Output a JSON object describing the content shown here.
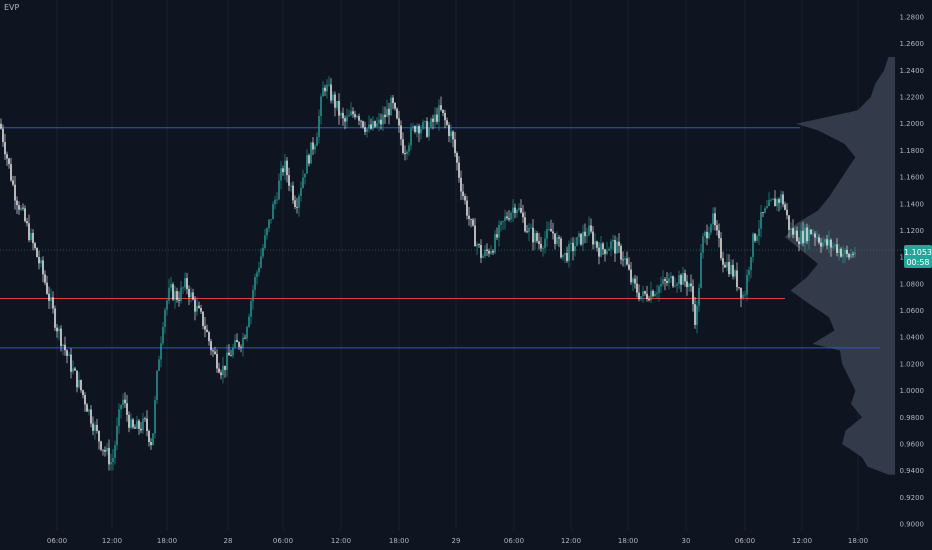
{
  "indicator": {
    "label": "EVP"
  },
  "price_label": {
    "value": "1.1053",
    "countdown": "00:58"
  },
  "colors": {
    "background": "#0f1421",
    "up": "#26a69a",
    "down": "#ffffff",
    "line_blue": "#2f52e0",
    "line_red": "#e03a48",
    "line_green": "#2f7a5a",
    "profile": "#3a4150",
    "axis_text": "#b2b5be",
    "grid": "#1a2030",
    "price_badge": "#26a69a"
  },
  "chart_data": {
    "type": "candlestick",
    "yticks": [
      "1.2800",
      "1.2600",
      "1.2400",
      "1.2200",
      "1.2000",
      "1.1800",
      "1.1600",
      "1.1400",
      "1.1200",
      "1.1000",
      "1.0800",
      "1.0600",
      "1.0400",
      "1.0200",
      "1.0000",
      "0.9800",
      "0.9600",
      "0.9400",
      "0.9200",
      "0.9000"
    ],
    "ylim": [
      0.9,
      1.28
    ],
    "xticks": [
      "06:00",
      "12:00",
      "18:00",
      "28",
      "06:00",
      "12:00",
      "18:00",
      "29",
      "06:00",
      "12:00",
      "18:00",
      "30",
      "06:00",
      "12:00",
      "18:00"
    ],
    "levels": {
      "value_area_high": 1.197,
      "point_of_control": 1.069,
      "value_area_low": 1.032,
      "last_price": 1.1053
    },
    "price_path": [
      [
        0,
        1.2
      ],
      [
        14,
        1.15
      ],
      [
        28,
        1.12
      ],
      [
        42,
        1.09
      ],
      [
        56,
        1.05
      ],
      [
        70,
        1.02
      ],
      [
        84,
        0.995
      ],
      [
        98,
        0.965
      ],
      [
        112,
        0.945
      ],
      [
        122,
        0.995
      ],
      [
        132,
        0.97
      ],
      [
        145,
        0.975
      ],
      [
        152,
        0.96
      ],
      [
        158,
        1.02
      ],
      [
        164,
        1.06
      ],
      [
        170,
        1.075
      ],
      [
        178,
        1.07
      ],
      [
        186,
        1.08
      ],
      [
        194,
        1.065
      ],
      [
        204,
        1.05
      ],
      [
        212,
        1.03
      ],
      [
        222,
        1.015
      ],
      [
        232,
        1.03
      ],
      [
        244,
        1.04
      ],
      [
        254,
        1.08
      ],
      [
        264,
        1.11
      ],
      [
        274,
        1.14
      ],
      [
        284,
        1.17
      ],
      [
        296,
        1.14
      ],
      [
        306,
        1.17
      ],
      [
        316,
        1.19
      ],
      [
        324,
        1.23
      ],
      [
        332,
        1.22
      ],
      [
        344,
        1.2
      ],
      [
        356,
        1.21
      ],
      [
        368,
        1.195
      ],
      [
        380,
        1.2
      ],
      [
        392,
        1.215
      ],
      [
        404,
        1.18
      ],
      [
        416,
        1.2
      ],
      [
        428,
        1.195
      ],
      [
        440,
        1.21
      ],
      [
        452,
        1.19
      ],
      [
        462,
        1.15
      ],
      [
        472,
        1.12
      ],
      [
        482,
        1.1
      ],
      [
        494,
        1.11
      ],
      [
        506,
        1.13
      ],
      [
        516,
        1.14
      ],
      [
        528,
        1.12
      ],
      [
        540,
        1.11
      ],
      [
        552,
        1.12
      ],
      [
        564,
        1.1
      ],
      [
        576,
        1.11
      ],
      [
        588,
        1.12
      ],
      [
        600,
        1.105
      ],
      [
        612,
        1.11
      ],
      [
        624,
        1.1
      ],
      [
        632,
        1.08
      ],
      [
        642,
        1.07
      ],
      [
        652,
        1.075
      ],
      [
        664,
        1.08
      ],
      [
        678,
        1.085
      ],
      [
        690,
        1.08
      ],
      [
        696,
        1.05
      ],
      [
        702,
        1.11
      ],
      [
        712,
        1.13
      ],
      [
        722,
        1.1
      ],
      [
        732,
        1.09
      ],
      [
        744,
        1.07
      ],
      [
        752,
        1.11
      ],
      [
        762,
        1.13
      ],
      [
        772,
        1.14
      ],
      [
        782,
        1.145
      ],
      [
        790,
        1.12
      ],
      [
        800,
        1.115
      ],
      [
        812,
        1.12
      ],
      [
        824,
        1.11
      ],
      [
        836,
        1.108
      ],
      [
        848,
        1.1
      ],
      [
        855,
        1.105
      ]
    ],
    "volume_profile": [
      [
        1.25,
        6
      ],
      [
        1.24,
        10
      ],
      [
        1.23,
        18
      ],
      [
        1.22,
        22
      ],
      [
        1.21,
        34
      ],
      [
        1.2,
        90
      ],
      [
        1.195,
        70
      ],
      [
        1.185,
        46
      ],
      [
        1.175,
        36
      ],
      [
        1.165,
        44
      ],
      [
        1.155,
        52
      ],
      [
        1.145,
        60
      ],
      [
        1.135,
        70
      ],
      [
        1.125,
        90
      ],
      [
        1.115,
        100
      ],
      [
        1.105,
        85
      ],
      [
        1.095,
        70
      ],
      [
        1.085,
        80
      ],
      [
        1.075,
        95
      ],
      [
        1.065,
        78
      ],
      [
        1.055,
        60
      ],
      [
        1.045,
        55
      ],
      [
        1.035,
        75
      ],
      [
        1.03,
        50
      ],
      [
        1.02,
        48
      ],
      [
        1.01,
        42
      ],
      [
        1.0,
        36
      ],
      [
        0.99,
        40
      ],
      [
        0.98,
        30
      ],
      [
        0.97,
        45
      ],
      [
        0.96,
        48
      ],
      [
        0.95,
        30
      ],
      [
        0.943,
        25
      ],
      [
        0.937,
        6
      ]
    ]
  }
}
